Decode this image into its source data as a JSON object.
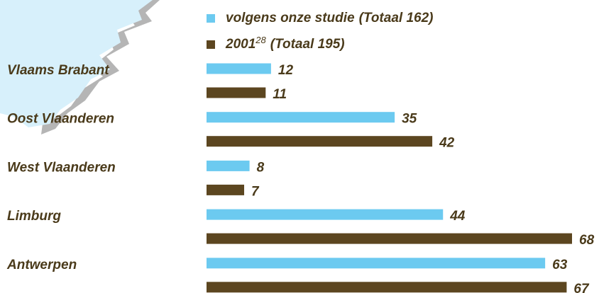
{
  "chart_data": {
    "type": "bar",
    "orientation": "horizontal",
    "categories": [
      "Vlaams Brabant",
      "Oost Vlaanderen",
      "West Vlaanderen",
      "Limburg",
      "Antwerpen"
    ],
    "series": [
      {
        "name": "volgens onze studie",
        "total_label": "(Totaal 162)",
        "color": "#6ccaf0",
        "values": [
          12,
          35,
          8,
          44,
          63
        ]
      },
      {
        "name": "2001",
        "footnote": "28",
        "total_label": "(Totaal 195)",
        "color": "#5c4620",
        "values": [
          11,
          42,
          7,
          68,
          67
        ]
      }
    ],
    "grid": false
  }
}
